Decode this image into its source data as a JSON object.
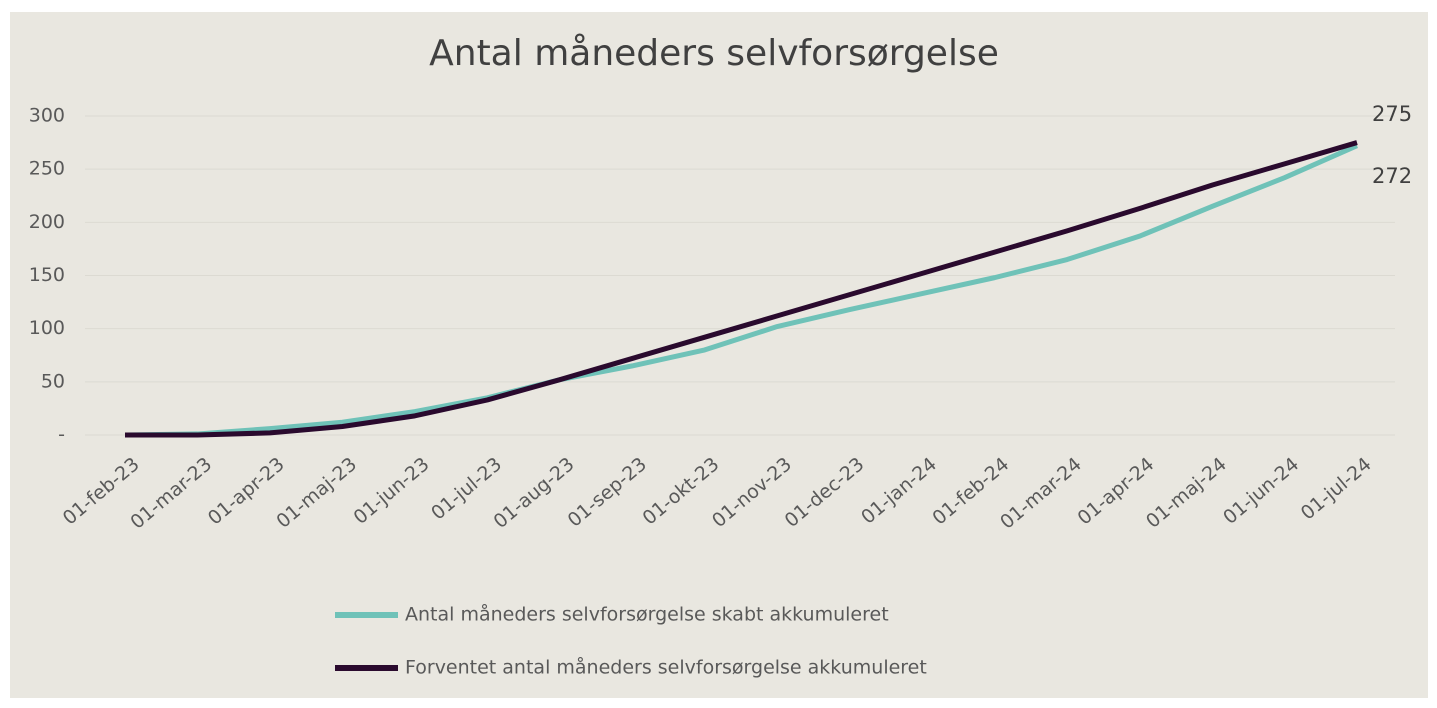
{
  "chart_data": {
    "type": "line",
    "title": "Antal måneders selvforsørgelse",
    "categories": [
      "01-feb-23",
      "01-mar-23",
      "01-apr-23",
      "01-maj-23",
      "01-jun-23",
      "01-jul-23",
      "01-aug-23",
      "01-sep-23",
      "01-okt-23",
      "01-nov-23",
      "01-dec-23",
      "01-jan-24",
      "01-feb-24",
      "01-mar-24",
      "01-apr-24",
      "01-maj-24",
      "01-jun-24",
      "01-jul-24"
    ],
    "series": [
      {
        "name": "Antal måneders selvforsørgelse skabt akkumuleret",
        "color": "#6fc2b8",
        "values": [
          0,
          1,
          6,
          12,
          22,
          35,
          52,
          65,
          80,
          102,
          118,
          133,
          148,
          165,
          187,
          215,
          242,
          272
        ]
      },
      {
        "name": "Forventet antal måneders selvforsørgelse akkumuleret",
        "color": "#2a0a2e",
        "values": [
          0,
          0,
          2,
          8,
          18,
          33,
          52,
          72,
          92,
          112,
          132,
          152,
          172,
          192,
          213,
          235,
          255,
          275
        ]
      }
    ],
    "ylim": [
      0,
      300
    ],
    "yticks": [
      {
        "value": 0,
        "label": "-"
      },
      50,
      100,
      150,
      200,
      250,
      300
    ],
    "grid": true
  }
}
